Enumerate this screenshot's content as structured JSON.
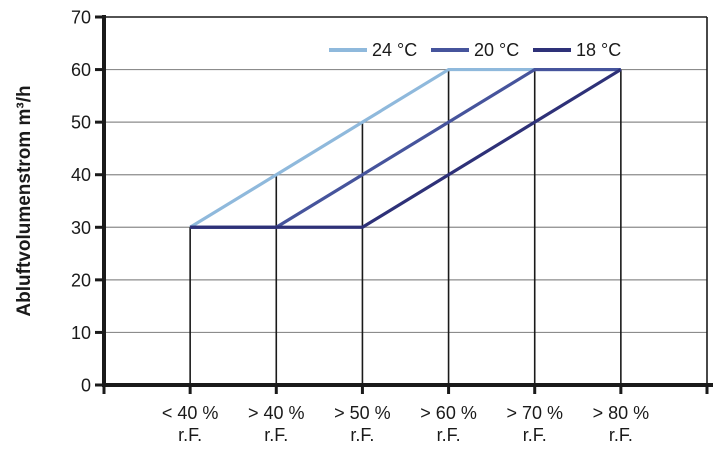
{
  "chart_data": {
    "type": "line",
    "title": "",
    "xlabel": "",
    "ylabel": "Abluftvolumenstrom m³/h",
    "ylim": [
      0,
      70
    ],
    "yticks": [
      0,
      10,
      20,
      30,
      40,
      50,
      60,
      70
    ],
    "categories": [
      "< 40 %",
      "> 40 %",
      "> 50 %",
      "> 60 %",
      "> 70 %",
      "> 80 %"
    ],
    "category_sublabel": "r.F.",
    "series": [
      {
        "name": "24 °C",
        "color": "#8FB9DC",
        "values": [
          30,
          40,
          50,
          60,
          60,
          60
        ]
      },
      {
        "name": "20 °C",
        "color": "#46549C",
        "values": [
          30,
          30,
          40,
          50,
          60,
          60
        ]
      },
      {
        "name": "18 °C",
        "color": "#2E3178",
        "values": [
          30,
          30,
          30,
          40,
          50,
          60
        ]
      }
    ],
    "legend_position": "top-inside",
    "grid": {
      "horizontal": true,
      "vertical_drop_lines_to_max_series": true
    }
  },
  "colors": {
    "axis": "#1a1a1a",
    "frame": "#1a1a1a",
    "grid": "#8c8c8c",
    "text": "#1a1a1a",
    "background": "#ffffff"
  }
}
